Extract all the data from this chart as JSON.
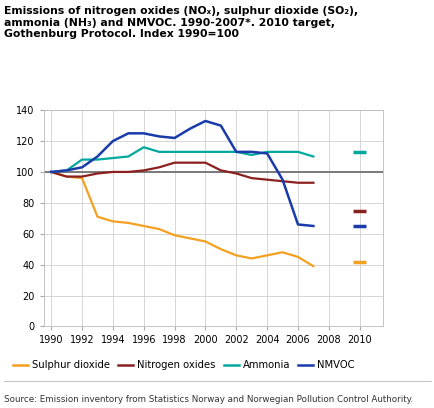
{
  "title_line1": "Emissions of nitrogen oxides (NO",
  "title_line1_sub": "x",
  "title": "Emissions of nitrogen oxides (NOₓ), sulphur dioxide (SO₂),\nammonia (NH₃) and NMVOC. 1990-2007*. 2010 target,\nGothenburg Protocol. Index 1990=100",
  "source": "Source: Emission inventory from Statistics Norway and Norwegian Pollution Control Authority.",
  "years_main": [
    1990,
    1991,
    1992,
    1993,
    1994,
    1995,
    1996,
    1997,
    1998,
    1999,
    2000,
    2001,
    2002,
    2003,
    2004,
    2005,
    2006,
    2007
  ],
  "sulphur_dioxide": [
    100,
    97,
    96,
    71,
    68,
    67,
    65,
    63,
    59,
    57,
    55,
    50,
    46,
    44,
    46,
    48,
    45,
    39
  ],
  "sulphur_dioxide_target": 42,
  "nitrogen_oxides": [
    100,
    97,
    97,
    99,
    100,
    100,
    101,
    103,
    106,
    106,
    106,
    101,
    99,
    96,
    95,
    94,
    93,
    93
  ],
  "nitrogen_oxides_target": 75,
  "ammonia": [
    100,
    101,
    108,
    108,
    109,
    110,
    116,
    113,
    113,
    113,
    113,
    113,
    113,
    111,
    113,
    113,
    113,
    110
  ],
  "ammonia_target": 113,
  "nmvoc": [
    100,
    101,
    103,
    110,
    120,
    125,
    125,
    123,
    122,
    128,
    133,
    130,
    113,
    113,
    112,
    95,
    66,
    65
  ],
  "nmvoc_target": 65,
  "colors": {
    "sulphur_dioxide": "#F4A020",
    "nitrogen_oxides": "#8B2020",
    "ammonia": "#00A89D",
    "nmvoc": "#1A3BAA",
    "reference_line": "#707070"
  },
  "ylim": [
    0,
    140
  ],
  "yticks": [
    0,
    20,
    40,
    60,
    80,
    100,
    120,
    140
  ],
  "xticks": [
    1990,
    1992,
    1994,
    1996,
    1998,
    2000,
    2002,
    2004,
    2006,
    2008,
    2010
  ],
  "xlim": [
    1989.5,
    2011.5
  ],
  "target_x": 2010
}
